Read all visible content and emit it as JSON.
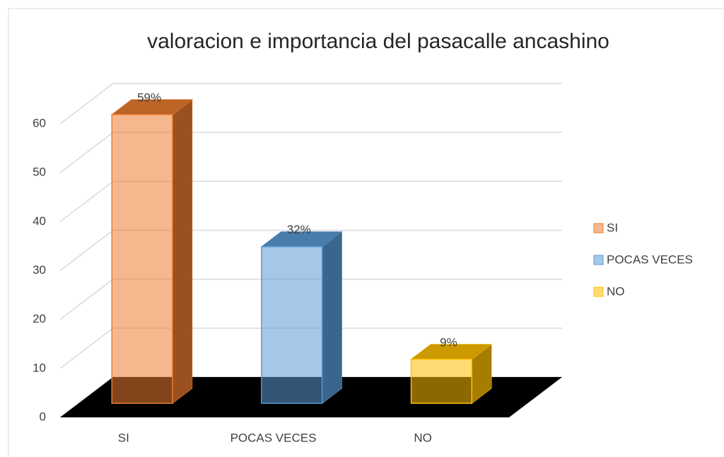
{
  "chart_data": {
    "type": "bar",
    "title": "valoracion e importancia  del pasacalle  ancashino",
    "categories": [
      "SI",
      "POCAS  VECES",
      "NO"
    ],
    "values": [
      59,
      32,
      9
    ],
    "value_labels": [
      "59%",
      "32%",
      "9%"
    ],
    "colors": [
      "#ed7d31",
      "#5b9bd5",
      "#ffc000"
    ],
    "ylim": [
      0,
      60
    ],
    "yticks": [
      0,
      10,
      20,
      30,
      40,
      50,
      60
    ],
    "grid": true,
    "legend": "right"
  }
}
